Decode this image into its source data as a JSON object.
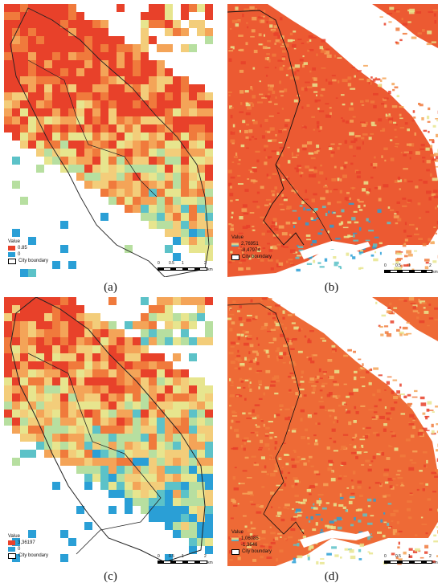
{
  "figure": {
    "panels": [
      {
        "id": "a",
        "caption": "(a)",
        "type": "grid",
        "legend": {
          "title": "Value",
          "high": "0.85",
          "low": "0",
          "boundary": "City boundary"
        },
        "scale": {
          "ticks": [
            "0",
            "0.5",
            "1",
            "2"
          ],
          "unit": "km"
        },
        "colors": [
          "#e8412a",
          "#f07a3c",
          "#f4a458",
          "#f3cd7a",
          "#e7e58e",
          "#b7dfa0",
          "#5cc2c8",
          "#2a9fd6"
        ]
      },
      {
        "id": "b",
        "caption": "(b)",
        "type": "raster",
        "legend": {
          "title": "Value",
          "high": "2,76951",
          "low": "-8,47974",
          "boundary": "City boundary"
        },
        "scale": {
          "ticks": [
            "0",
            "0.5",
            "1",
            "2"
          ],
          "unit": "km"
        },
        "colors": [
          "#e8412a",
          "#f07a3c",
          "#f4a458",
          "#e7e58e",
          "#5cc2c8",
          "#2a9fd6"
        ]
      },
      {
        "id": "c",
        "caption": "(c)",
        "type": "grid",
        "legend": {
          "title": "Value",
          "high": "3,36197",
          "low": "0",
          "boundary": "City boundary"
        },
        "scale": {
          "ticks": [
            "0",
            "0.5",
            "1",
            "2"
          ],
          "unit": "km"
        },
        "colors": [
          "#e8412a",
          "#f07a3c",
          "#f4a458",
          "#f3cd7a",
          "#e7e58e",
          "#b7dfa0",
          "#5cc2c8",
          "#2a9fd6"
        ]
      },
      {
        "id": "d",
        "caption": "(d)",
        "type": "raster",
        "legend": {
          "title": "Value",
          "high": "1,06085",
          "low": "-1,3646",
          "boundary": "City boundary"
        },
        "scale": {
          "ticks": [
            "0",
            "0.5",
            "1",
            "2"
          ],
          "unit": "km"
        },
        "colors": [
          "#e8412a",
          "#f07a3c",
          "#f4a458",
          "#e7e58e",
          "#5cc2c8",
          "#2a9fd6"
        ]
      }
    ]
  }
}
